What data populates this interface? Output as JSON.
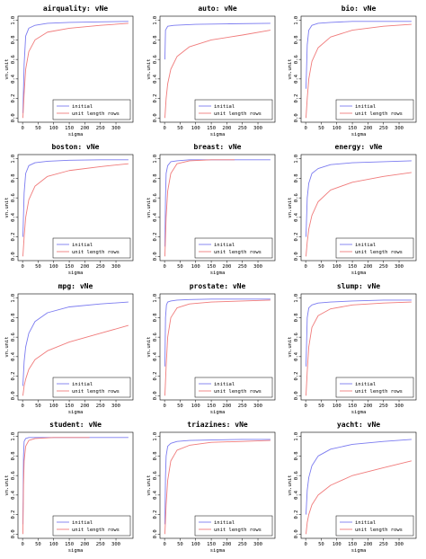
{
  "colors": {
    "initial": "#7b7bf0",
    "unit_length_rows": "#f07b7b",
    "frame": "#000000"
  },
  "chart_data": [
    {
      "type": "line",
      "title": "airquality: vNe",
      "xlabel": "sigma",
      "ylabel": "vn.unit",
      "xlim": [
        0,
        340
      ],
      "ylim": [
        0,
        1.0
      ],
      "x_ticks": [
        "0",
        "50",
        "100",
        "150",
        "200",
        "250",
        "300"
      ],
      "y_ticks": [
        "0.0",
        "0.2",
        "0.4",
        "0.6",
        "0.8",
        "1.0"
      ],
      "legend": [
        "initial",
        "unit length rows"
      ],
      "legend_position": "bottom-right",
      "series": [
        {
          "name": "initial",
          "x": [
            1,
            5,
            10,
            20,
            40,
            80,
            150,
            250,
            340
          ],
          "values": [
            0.05,
            0.55,
            0.84,
            0.92,
            0.95,
            0.97,
            0.98,
            0.985,
            0.99
          ]
        },
        {
          "name": "unit length rows",
          "x": [
            1,
            5,
            10,
            20,
            40,
            80,
            150,
            250,
            340
          ],
          "values": [
            0.0,
            0.25,
            0.5,
            0.68,
            0.8,
            0.88,
            0.92,
            0.95,
            0.97
          ]
        }
      ]
    },
    {
      "type": "line",
      "title": "auto: vNe",
      "xlabel": "sigma",
      "ylabel": "vn.unit",
      "xlim": [
        0,
        340
      ],
      "ylim": [
        0,
        1.0
      ],
      "x_ticks": [
        "0",
        "50",
        "100",
        "150",
        "200",
        "250",
        "300"
      ],
      "y_ticks": [
        "0.0",
        "0.2",
        "0.4",
        "0.6",
        "0.8",
        "1.0"
      ],
      "legend": [
        "initial",
        "unit length rows"
      ],
      "legend_position": "bottom-right",
      "series": [
        {
          "name": "initial",
          "x": [
            1,
            3,
            10,
            30,
            100,
            200,
            340
          ],
          "values": [
            0.6,
            0.9,
            0.94,
            0.95,
            0.96,
            0.965,
            0.97
          ]
        },
        {
          "name": "unit length rows",
          "x": [
            1,
            5,
            10,
            20,
            40,
            80,
            150,
            250,
            340
          ],
          "values": [
            0.0,
            0.2,
            0.35,
            0.5,
            0.63,
            0.73,
            0.8,
            0.85,
            0.9
          ]
        }
      ]
    },
    {
      "type": "line",
      "title": "bio: vNe",
      "xlabel": "sigma",
      "ylabel": "vn.unit",
      "xlim": [
        0,
        340
      ],
      "ylim": [
        0,
        1.0
      ],
      "x_ticks": [
        "0",
        "50",
        "100",
        "150",
        "200",
        "250",
        "300"
      ],
      "y_ticks": [
        "0.0",
        "0.2",
        "0.4",
        "0.6",
        "0.8",
        "1.0"
      ],
      "legend": [
        "initial",
        "unit length rows"
      ],
      "legend_position": "bottom-right",
      "series": [
        {
          "name": "initial",
          "x": [
            1,
            5,
            10,
            20,
            40,
            80,
            150,
            250,
            340
          ],
          "values": [
            0.3,
            0.75,
            0.9,
            0.95,
            0.97,
            0.98,
            0.99,
            0.99,
            0.99
          ]
        },
        {
          "name": "unit length rows",
          "x": [
            1,
            5,
            10,
            20,
            40,
            80,
            150,
            250,
            340
          ],
          "values": [
            0.0,
            0.2,
            0.4,
            0.58,
            0.72,
            0.83,
            0.9,
            0.94,
            0.96
          ]
        }
      ]
    },
    {
      "type": "line",
      "title": "boston: vNe",
      "xlabel": "sigma",
      "ylabel": "vn.unit",
      "xlim": [
        0,
        340
      ],
      "ylim": [
        0,
        1.0
      ],
      "x_ticks": [
        "0",
        "50",
        "100",
        "150",
        "200",
        "250",
        "300"
      ],
      "y_ticks": [
        "0.0",
        "0.2",
        "0.4",
        "0.6",
        "0.8",
        "1.0"
      ],
      "legend": [
        "initial",
        "unit length rows"
      ],
      "legend_position": "bottom-right",
      "series": [
        {
          "name": "initial",
          "x": [
            1,
            5,
            10,
            20,
            40,
            80,
            150,
            250,
            340
          ],
          "values": [
            0.2,
            0.65,
            0.85,
            0.93,
            0.96,
            0.975,
            0.985,
            0.99,
            0.99
          ]
        },
        {
          "name": "unit length rows",
          "x": [
            1,
            5,
            10,
            20,
            40,
            80,
            150,
            250,
            340
          ],
          "values": [
            0.0,
            0.2,
            0.4,
            0.58,
            0.72,
            0.82,
            0.88,
            0.92,
            0.95
          ]
        }
      ]
    },
    {
      "type": "line",
      "title": "breast: vNe",
      "xlabel": "sigma",
      "ylabel": "vn.unit",
      "xlim": [
        0,
        340
      ],
      "ylim": [
        0,
        1.0
      ],
      "x_ticks": [
        "0",
        "50",
        "100",
        "150",
        "200",
        "250",
        "300"
      ],
      "y_ticks": [
        "0.0",
        "0.2",
        "0.4",
        "0.6",
        "0.8",
        "1.0"
      ],
      "legend": [
        "initial",
        "unit length rows"
      ],
      "legend_position": "bottom-right",
      "series": [
        {
          "name": "initial",
          "x": [
            1,
            3,
            5,
            10,
            20,
            40,
            80,
            150,
            250,
            340
          ],
          "values": [
            0.1,
            0.6,
            0.85,
            0.93,
            0.97,
            0.98,
            0.99,
            0.99,
            0.99,
            0.99
          ]
        },
        {
          "name": "unit length rows",
          "x": [
            1,
            5,
            10,
            20,
            40,
            80,
            150,
            225
          ],
          "values": [
            0.0,
            0.4,
            0.67,
            0.85,
            0.95,
            0.98,
            0.99,
            0.99
          ]
        }
      ]
    },
    {
      "type": "line",
      "title": "energy: vNe",
      "xlabel": "sigma",
      "ylabel": "vn.unit",
      "xlim": [
        0,
        340
      ],
      "ylim": [
        0,
        1.0
      ],
      "x_ticks": [
        "0",
        "50",
        "100",
        "150",
        "200",
        "250",
        "300"
      ],
      "y_ticks": [
        "0.0",
        "0.2",
        "0.4",
        "0.6",
        "0.8",
        "1.0"
      ],
      "legend": [
        "initial",
        "unit length rows"
      ],
      "legend_position": "bottom-right",
      "series": [
        {
          "name": "initial",
          "x": [
            1,
            5,
            10,
            20,
            40,
            80,
            150,
            250,
            340
          ],
          "values": [
            0.2,
            0.6,
            0.75,
            0.85,
            0.9,
            0.94,
            0.96,
            0.97,
            0.98
          ]
        },
        {
          "name": "unit length rows",
          "x": [
            1,
            5,
            10,
            20,
            40,
            80,
            150,
            250,
            340
          ],
          "values": [
            0.0,
            0.15,
            0.28,
            0.42,
            0.56,
            0.68,
            0.76,
            0.82,
            0.86
          ]
        }
      ]
    },
    {
      "type": "line",
      "title": "mpg: vNe",
      "xlabel": "sigma",
      "ylabel": "vn.unit",
      "xlim": [
        0,
        340
      ],
      "ylim": [
        0,
        1.0
      ],
      "x_ticks": [
        "0",
        "50",
        "100",
        "150",
        "200",
        "250",
        "300"
      ],
      "y_ticks": [
        "0.0",
        "0.2",
        "0.4",
        "0.6",
        "0.8",
        "1.0"
      ],
      "legend": [
        "initial",
        "unit length rows"
      ],
      "legend_position": "bottom-right",
      "series": [
        {
          "name": "initial",
          "x": [
            1,
            5,
            10,
            20,
            40,
            80,
            150,
            250,
            340
          ],
          "values": [
            0.1,
            0.35,
            0.5,
            0.64,
            0.76,
            0.85,
            0.91,
            0.94,
            0.96
          ]
        },
        {
          "name": "unit length rows",
          "x": [
            1,
            5,
            10,
            20,
            40,
            80,
            150,
            250,
            340
          ],
          "values": [
            0.0,
            0.1,
            0.17,
            0.27,
            0.37,
            0.46,
            0.55,
            0.64,
            0.72
          ]
        }
      ]
    },
    {
      "type": "line",
      "title": "prostate: vNe",
      "xlabel": "sigma",
      "ylabel": "vn.unit",
      "xlim": [
        0,
        340
      ],
      "ylim": [
        0,
        1.0
      ],
      "x_ticks": [
        "0",
        "50",
        "100",
        "150",
        "200",
        "250",
        "300"
      ],
      "y_ticks": [
        "0.0",
        "0.2",
        "0.4",
        "0.6",
        "0.8",
        "1.0"
      ],
      "legend": [
        "initial",
        "unit length rows"
      ],
      "legend_position": "bottom-right",
      "series": [
        {
          "name": "initial",
          "x": [
            1,
            3,
            6,
            10,
            20,
            40,
            80,
            150,
            250,
            340
          ],
          "values": [
            0.3,
            0.8,
            0.93,
            0.96,
            0.97,
            0.98,
            0.985,
            0.99,
            0.99,
            0.99
          ]
        },
        {
          "name": "unit length rows",
          "x": [
            1,
            5,
            10,
            20,
            40,
            80,
            150,
            250,
            340
          ],
          "values": [
            0.0,
            0.3,
            0.6,
            0.8,
            0.9,
            0.94,
            0.96,
            0.97,
            0.98
          ]
        }
      ]
    },
    {
      "type": "line",
      "title": "slump: vNe",
      "xlabel": "sigma",
      "ylabel": "vn.unit",
      "xlim": [
        0,
        340
      ],
      "ylim": [
        0,
        1.0
      ],
      "x_ticks": [
        "0",
        "50",
        "100",
        "150",
        "200",
        "250",
        "300"
      ],
      "y_ticks": [
        "0.0",
        "0.2",
        "0.4",
        "0.6",
        "0.8",
        "1.0"
      ],
      "legend": [
        "initial",
        "unit length rows"
      ],
      "legend_position": "bottom-right",
      "series": [
        {
          "name": "initial",
          "x": [
            1,
            5,
            10,
            20,
            40,
            80,
            150,
            250,
            340
          ],
          "values": [
            0.3,
            0.8,
            0.9,
            0.93,
            0.95,
            0.96,
            0.97,
            0.98,
            0.98
          ]
        },
        {
          "name": "unit length rows",
          "x": [
            1,
            5,
            10,
            20,
            40,
            80,
            150,
            250,
            340
          ],
          "values": [
            0.0,
            0.25,
            0.5,
            0.7,
            0.82,
            0.89,
            0.93,
            0.95,
            0.96
          ]
        }
      ]
    },
    {
      "type": "line",
      "title": "student: vNe",
      "xlabel": "sigma",
      "ylabel": "vn.unit",
      "xlim": [
        0,
        340
      ],
      "ylim": [
        0,
        1.0
      ],
      "x_ticks": [
        "0",
        "50",
        "100",
        "150",
        "200",
        "250",
        "300"
      ],
      "y_ticks": [
        "0.0",
        "0.2",
        "0.4",
        "0.6",
        "0.8",
        "1.0"
      ],
      "legend": [
        "initial",
        "unit length rows"
      ],
      "legend_position": "bottom-right",
      "series": [
        {
          "name": "initial",
          "x": [
            1,
            3,
            5,
            10,
            20,
            40,
            100,
            200,
            340
          ],
          "values": [
            0.1,
            0.8,
            0.95,
            0.98,
            0.99,
            0.99,
            0.99,
            0.99,
            0.99
          ]
        },
        {
          "name": "unit length rows",
          "x": [
            1,
            3,
            5,
            10,
            20,
            40,
            100,
            215
          ],
          "values": [
            0.0,
            0.5,
            0.75,
            0.9,
            0.96,
            0.98,
            0.99,
            0.99
          ]
        }
      ]
    },
    {
      "type": "line",
      "title": "triazines: vNe",
      "xlabel": "sigma",
      "ylabel": "vn.unit",
      "xlim": [
        0,
        340
      ],
      "ylim": [
        0,
        1.0
      ],
      "x_ticks": [
        "0",
        "50",
        "100",
        "150",
        "200",
        "250",
        "300"
      ],
      "y_ticks": [
        "0.0",
        "0.2",
        "0.4",
        "0.6",
        "0.8",
        "1.0"
      ],
      "legend": [
        "initial",
        "unit length rows"
      ],
      "legend_position": "bottom-right",
      "series": [
        {
          "name": "initial",
          "x": [
            1,
            3,
            5,
            10,
            20,
            40,
            80,
            150,
            250,
            340
          ],
          "values": [
            0.1,
            0.6,
            0.8,
            0.9,
            0.93,
            0.95,
            0.96,
            0.965,
            0.97,
            0.97
          ]
        },
        {
          "name": "unit length rows",
          "x": [
            1,
            5,
            10,
            20,
            40,
            80,
            150,
            250,
            340
          ],
          "values": [
            0.0,
            0.3,
            0.55,
            0.75,
            0.86,
            0.91,
            0.94,
            0.95,
            0.96
          ]
        }
      ]
    },
    {
      "type": "line",
      "title": "yacht: vNe",
      "xlabel": "sigma",
      "ylabel": "vn.unit",
      "xlim": [
        0,
        340
      ],
      "ylim": [
        0,
        1.0
      ],
      "x_ticks": [
        "0",
        "50",
        "100",
        "150",
        "200",
        "250",
        "300"
      ],
      "y_ticks": [
        "0.0",
        "0.2",
        "0.4",
        "0.6",
        "0.8",
        "1.0"
      ],
      "legend": [
        "initial",
        "unit length rows"
      ],
      "legend_position": "bottom-right",
      "series": [
        {
          "name": "initial",
          "x": [
            1,
            5,
            10,
            20,
            40,
            80,
            150,
            250,
            340
          ],
          "values": [
            0.2,
            0.45,
            0.58,
            0.7,
            0.8,
            0.87,
            0.92,
            0.95,
            0.97
          ]
        },
        {
          "name": "unit length rows",
          "x": [
            1,
            5,
            10,
            20,
            40,
            80,
            150,
            250,
            340
          ],
          "values": [
            0.0,
            0.12,
            0.2,
            0.3,
            0.4,
            0.5,
            0.6,
            0.68,
            0.75
          ]
        }
      ]
    }
  ]
}
